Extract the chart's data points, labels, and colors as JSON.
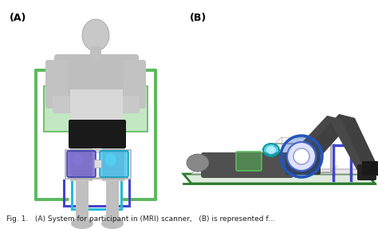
{
  "bg_color": "#ffffff",
  "figure_width": 4.74,
  "figure_height": 2.87,
  "dpi": 100,
  "panel_A_label": "(A)",
  "panel_B_label": "(B)",
  "label_fontsize": 9,
  "caption_fontsize": 6.5,
  "caption": "Fig. 1.   (A) System for participant in (MRI) scanner,   (B) is represented f...",
  "green_frame": "#5cb85c",
  "green_dark": "#2d7a2d",
  "blue_frame": "#4444cc",
  "cyan_frame": "#22bbdd",
  "purple_box": "#6655cc",
  "cyan_box": "#33bbee",
  "blue_ring": "#2255bb",
  "green_box": "#55bb55",
  "gray_body": "#b0b0b0",
  "dark_body": "#444444",
  "frame_gray": "#aaaaaa",
  "white": "#ffffff"
}
